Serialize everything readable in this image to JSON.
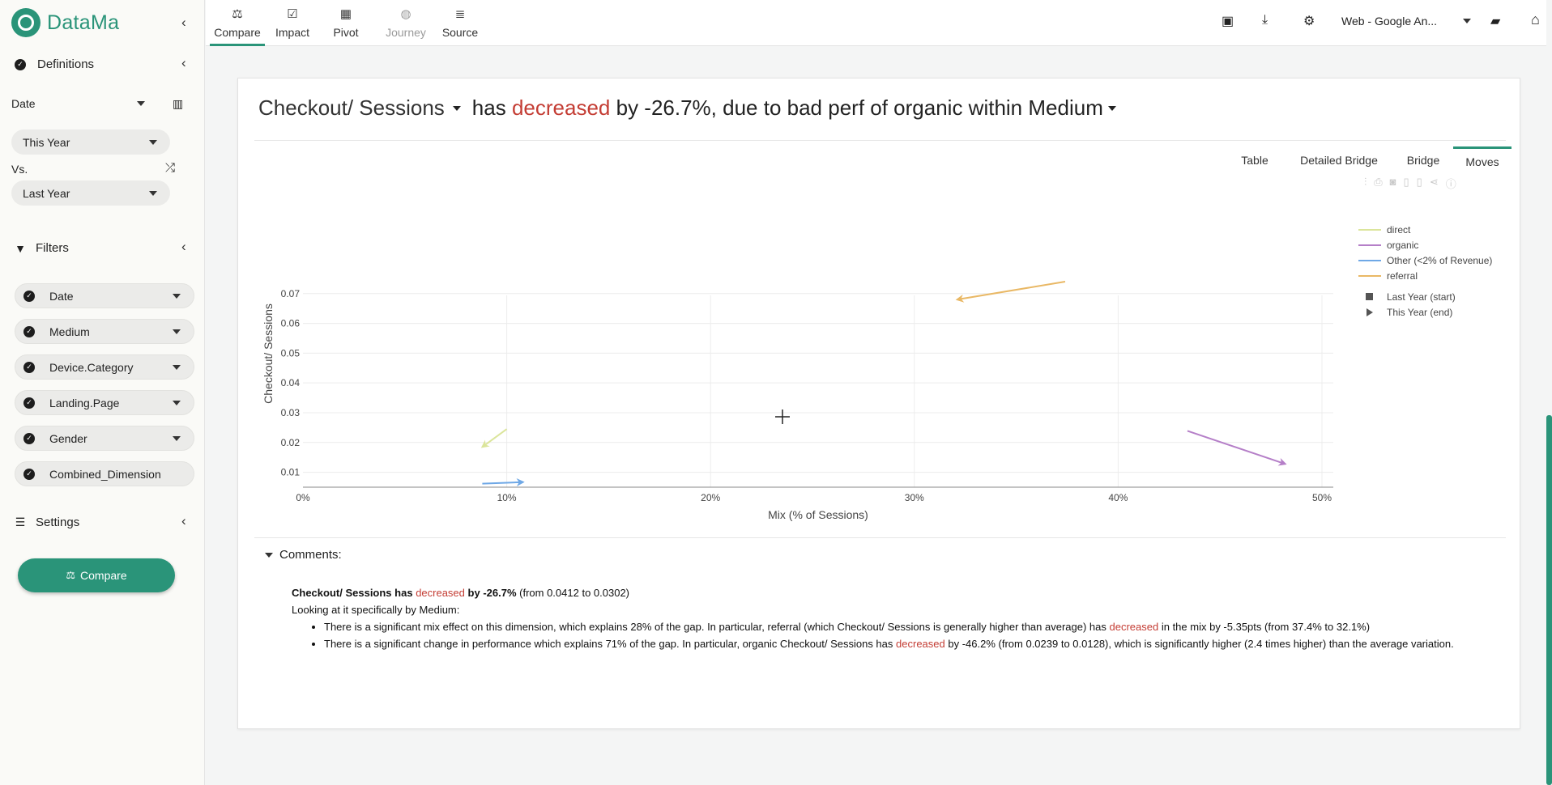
{
  "app": {
    "name": "DataMa"
  },
  "sidebar": {
    "definitions_label": "Definitions",
    "date_label": "Date",
    "period_current": "This Year",
    "vs_label": "Vs.",
    "period_compare": "Last Year",
    "filters_label": "Filters",
    "filters": [
      "Date",
      "Medium",
      "Device.Category",
      "Landing.Page",
      "Gender",
      "Combined_Dimension"
    ],
    "settings_label": "Settings",
    "compare_button": "Compare"
  },
  "topnav": {
    "tabs": [
      {
        "label": "Compare",
        "icon": "scale-icon"
      },
      {
        "label": "Impact",
        "icon": "check-square-icon"
      },
      {
        "label": "Pivot",
        "icon": "table-icon"
      },
      {
        "label": "Journey",
        "icon": "globe-icon"
      },
      {
        "label": "Source",
        "icon": "database-icon"
      }
    ],
    "source_select": "Web - Google An..."
  },
  "headline": {
    "metric": "Checkout/ Sessions",
    "text_before": "has",
    "direction": "decreased",
    "text_after": "by -26.7%, due to bad perf of organic within",
    "dimension": "Medium"
  },
  "view_tabs": [
    "Table",
    "Detailed Bridge",
    "Bridge",
    "Moves"
  ],
  "active_view": "Moves",
  "colors": {
    "accent": "#2a9479",
    "negative": "#c43d34",
    "direct": "#dbe59b",
    "organic": "#b57fc8",
    "other": "#6fa8e6",
    "referral": "#e9b865"
  },
  "chart_data": {
    "type": "scatter",
    "xlabel": "Mix (% of Sessions)",
    "ylabel": "Checkout/ Sessions",
    "xlim": [
      0,
      0.5
    ],
    "ylim": [
      0.005,
      0.077
    ],
    "x_ticks": [
      "0%",
      "10%",
      "20%",
      "30%",
      "40%",
      "50%"
    ],
    "y_ticks": [
      "0.01",
      "0.02",
      "0.03",
      "0.04",
      "0.05",
      "0.06",
      "0.07"
    ],
    "series": [
      {
        "name": "direct",
        "start": [
          0.1,
          0.0245
        ],
        "end": [
          0.088,
          0.0185
        ]
      },
      {
        "name": "organic",
        "start": [
          0.434,
          0.0239
        ],
        "end": [
          0.482,
          0.0128
        ]
      },
      {
        "name": "Other (<2% of Revenue)",
        "start": [
          0.088,
          0.0062
        ],
        "end": [
          0.108,
          0.0067
        ]
      },
      {
        "name": "referral",
        "start": [
          0.374,
          0.074
        ],
        "end": [
          0.321,
          0.068
        ]
      }
    ],
    "markers_legend": [
      "Last Year (start)",
      "This Year (end)"
    ],
    "legend_position": "right"
  },
  "comments": {
    "title": "Comments:",
    "summary_metric": "Checkout/ Sessions has",
    "summary_direction": "decreased",
    "summary_change": "by -26.7%",
    "summary_detail": "(from 0.0412 to 0.0302)",
    "intro": "Looking at it specifically by Medium:",
    "bullet1_a": "There is a significant mix effect on this dimension, which explains 28% of the gap. In particular, referral (which Checkout/ Sessions is generally higher than average) has",
    "bullet1_red": "decreased",
    "bullet1_b": "in the mix by -5.35pts (from 37.4% to 32.1%)",
    "bullet2_a": "There is a significant change in performance which explains 71% of the gap. In particular, organic Checkout/ Sessions has",
    "bullet2_red": "decreased",
    "bullet2_b": "by -46.2% (from 0.0239 to 0.0128), which is significantly higher (2.4 times higher) than the average variation."
  }
}
